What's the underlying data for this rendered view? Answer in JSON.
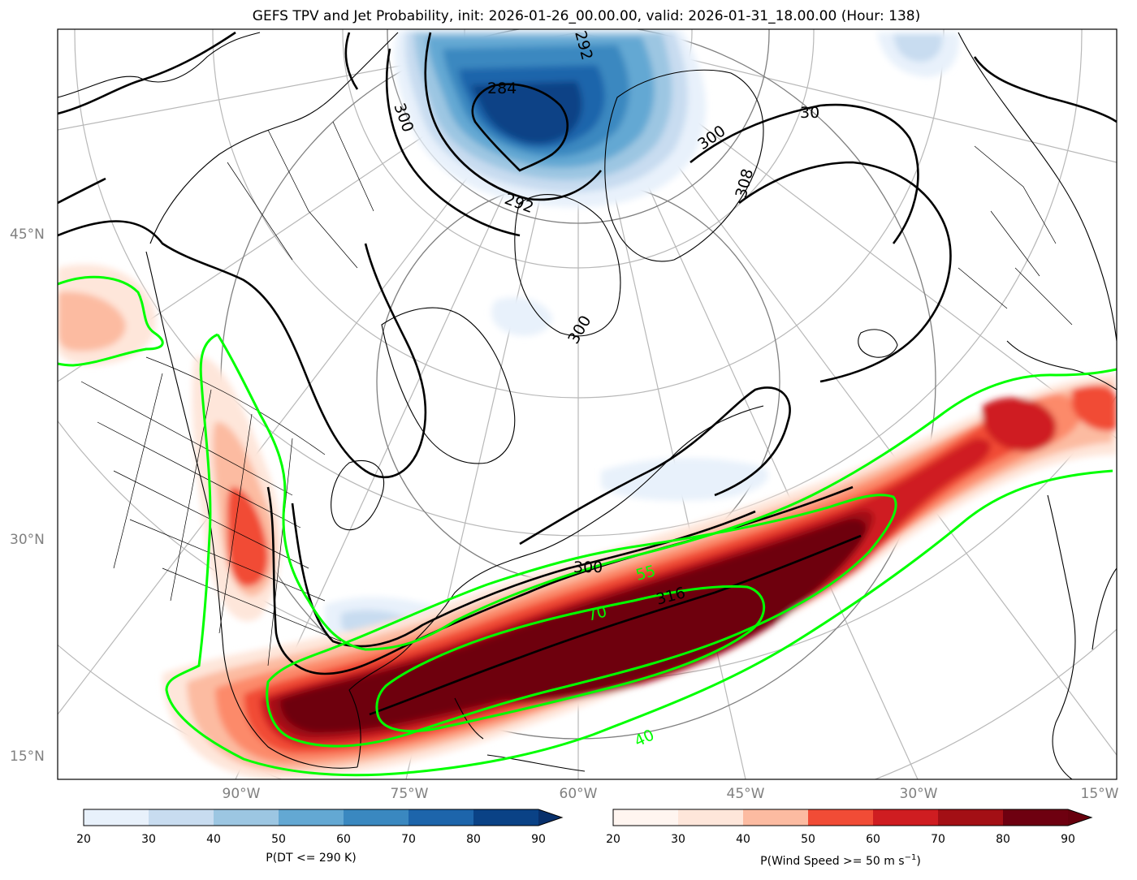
{
  "title": "GEFS TPV and Jet Probability, init: 2026-01-26_00.00.00, valid: 2026-01-31_18.00.00 (Hour: 138)",
  "lat_labels": [
    "45°N",
    "30°N",
    "15°N"
  ],
  "lon_labels": [
    "90°W",
    "75°W",
    "60°W",
    "45°W",
    "30°W",
    "15°W"
  ],
  "colors": {
    "blues": [
      "#e8f1fb",
      "#c8dcf0",
      "#9cc6e2",
      "#63a8d3",
      "#3a88c0",
      "#1d65ab",
      "#0a4286"
    ],
    "reds": [
      "#fee6da",
      "#fcbba1",
      "#fc8a6a",
      "#f14c36",
      "#cf1d21",
      "#a30f15",
      "#6e0010"
    ],
    "jet_contour": "#00ff00",
    "dt_contour": "#000000",
    "coast": "#000000",
    "grid": "#b0b0b0"
  },
  "colorbar_dt": {
    "label": "P(DT <= 290 K)",
    "ticks": [
      "20",
      "30",
      "40",
      "50",
      "60",
      "70",
      "80",
      "90"
    ]
  },
  "colorbar_wind": {
    "label": "P(Wind Speed >= 50 m s",
    "label_sup": "−1",
    "label_end": ")",
    "ticks": [
      "20",
      "30",
      "40",
      "50",
      "60",
      "70",
      "80",
      "90"
    ]
  },
  "contour_labels": {
    "dt": [
      "284",
      "292",
      "300",
      "300",
      "308",
      "300",
      "316",
      "300",
      "30",
      "292"
    ],
    "jet": [
      "55",
      "70",
      "40"
    ]
  }
}
